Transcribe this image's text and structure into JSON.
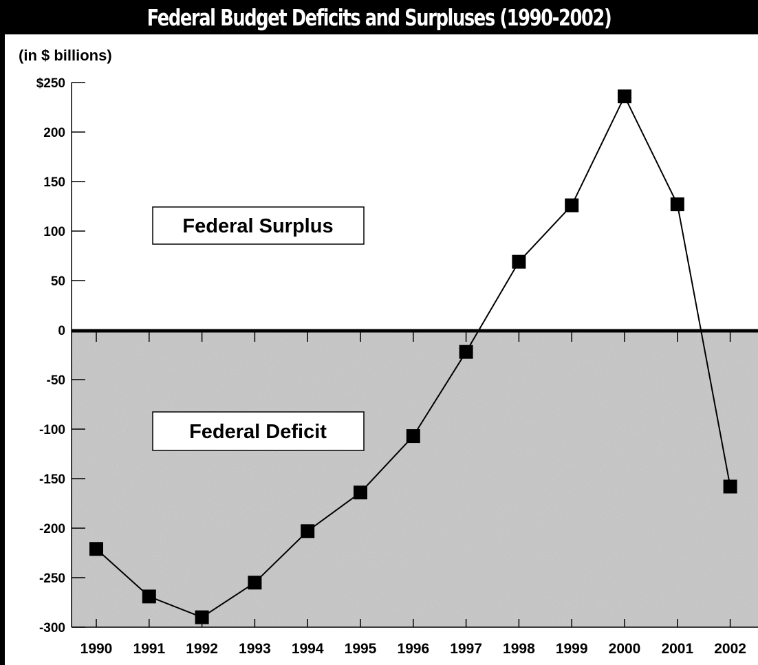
{
  "title": "Federal Budget Deficits and Surpluses (1990-2002)",
  "unit_label": "(in $ billions)",
  "region_labels": {
    "surplus": "Federal Surplus",
    "deficit": "Federal Deficit"
  },
  "colors": {
    "deficit_fill": "#c8c8c8",
    "line": "#000000",
    "marker": "#000000",
    "background": "#ffffff"
  },
  "chart_data": {
    "type": "line",
    "x": [
      "1990",
      "1991",
      "1992",
      "1993",
      "1994",
      "1995",
      "1996",
      "1997",
      "1998",
      "1999",
      "2000",
      "2001",
      "2002"
    ],
    "series": [
      {
        "values": [
          -221,
          -269,
          -290,
          -255,
          -203,
          -164,
          -107,
          -22,
          69,
          126,
          236,
          127,
          -158
        ]
      }
    ],
    "ylim": [
      -300,
      250
    ],
    "yticks": [
      250,
      200,
      150,
      100,
      50,
      0,
      -50,
      -100,
      -150,
      -200,
      -250,
      -300
    ],
    "ytick_labels": [
      "$250",
      "200",
      "150",
      "100",
      "50",
      "0",
      "-50",
      "-100",
      "-150",
      "-200",
      "-250",
      "-300"
    ],
    "grid": false,
    "legend": false
  }
}
